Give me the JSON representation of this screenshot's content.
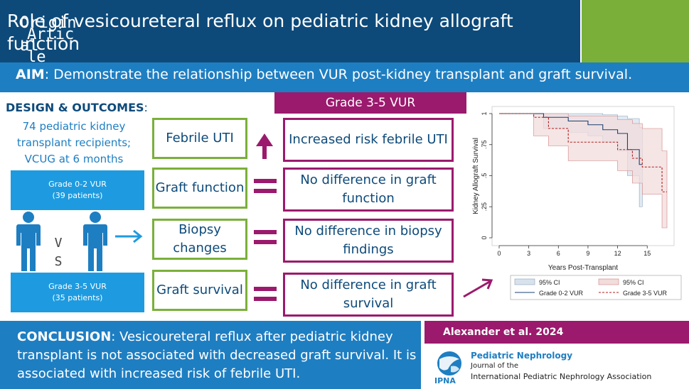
{
  "header": {
    "title": "Role of vesicoureteral reflux on pediatric kidney allograft function",
    "badge": "Original Article",
    "badge_lines": [
      "Origin",
      "Artic",
      "al",
      "le"
    ]
  },
  "aim": {
    "label": "AIM",
    "text": ": Demonstrate the relationship between VUR post-kidney transplant and graft survival."
  },
  "design": {
    "label": "DESIGN & OUTCOMES",
    "colon": ":",
    "lines": [
      "74 pediatric kidney",
      "transplant recipients;",
      "VCUG at 6 months"
    ]
  },
  "groups": [
    {
      "name": "Grade 0-2 VUR",
      "patients": "(39 patients)"
    },
    {
      "name": "Grade 3-5 VUR",
      "patients": "(35 patients)"
    }
  ],
  "vs": [
    "V",
    "S"
  ],
  "grade_header": "Grade 3-5 VUR",
  "outcomes": [
    {
      "outcome": "Febrile UTI",
      "result": "Increased risk febrile UTI",
      "symbol": "up-arrow"
    },
    {
      "outcome": "Graft function",
      "result": "No difference in graft function",
      "symbol": "equals"
    },
    {
      "outcome": "Biopsy changes",
      "result": "No difference in biopsy findings",
      "symbol": "equals"
    },
    {
      "outcome": "Graft survival",
      "result": "No difference in graft survival",
      "symbol": "equals"
    }
  ],
  "conclusion": {
    "label": "CONCLUSION",
    "text": ": Vesicoureteral reflux after pediatric kidney transplant is not associated with decreased graft survival. It is associated with increased risk of febrile UTI."
  },
  "citation": "Alexander et al. 2024",
  "journal": {
    "title": "Pediatric Nephrology",
    "sub": "Journal of the",
    "org": "International Pediatric Nephrology Association",
    "logo_text": "IPNA"
  },
  "colors": {
    "navy": "#0d4a7a",
    "blue": "#1e7ec2",
    "light_blue": "#1e9be0",
    "green": "#7ab03a",
    "magenta": "#9b1a6d"
  },
  "chart_data": {
    "type": "line",
    "xlabel": "Years Post-Transplant",
    "ylabel": "Kidney Allograft Survival",
    "xlim": [
      0,
      17
    ],
    "ylim": [
      0,
      1
    ],
    "xticks": [
      "0",
      "3",
      "6",
      "9",
      "12",
      "15"
    ],
    "yticks": [
      "0",
      ".25",
      ".5",
      ".75",
      "1"
    ],
    "series": [
      {
        "name": "Grade 0-2 VUR",
        "style": "solid",
        "points": [
          [
            0,
            1
          ],
          [
            4.5,
            1
          ],
          [
            4.5,
            0.97
          ],
          [
            7,
            0.97
          ],
          [
            7,
            0.94
          ],
          [
            9,
            0.94
          ],
          [
            9,
            0.91
          ],
          [
            10.5,
            0.91
          ],
          [
            10.5,
            0.87
          ],
          [
            12,
            0.87
          ],
          [
            12,
            0.84
          ],
          [
            13,
            0.84
          ],
          [
            13,
            0.71
          ],
          [
            14.2,
            0.71
          ],
          [
            14.2,
            0.59
          ],
          [
            14.5,
            0.59
          ]
        ],
        "ci_upper": [
          [
            0,
            1
          ],
          [
            4.5,
            1
          ],
          [
            7,
            1
          ],
          [
            9,
            1
          ],
          [
            10.5,
            0.99
          ],
          [
            12,
            0.98
          ],
          [
            13,
            0.96
          ],
          [
            14.2,
            0.89
          ],
          [
            14.5,
            0.87
          ]
        ],
        "ci_lower": [
          [
            0,
            1
          ],
          [
            4.5,
            0.88
          ],
          [
            7,
            0.85
          ],
          [
            9,
            0.82
          ],
          [
            10.5,
            0.77
          ],
          [
            12,
            0.7
          ],
          [
            13,
            0.5
          ],
          [
            14.2,
            0.25
          ],
          [
            14.5,
            0.25
          ]
        ]
      },
      {
        "name": "Grade 3-5 VUR",
        "style": "dashed",
        "points": [
          [
            0,
            1
          ],
          [
            3.5,
            1
          ],
          [
            3.5,
            0.97
          ],
          [
            5,
            0.97
          ],
          [
            5,
            0.88
          ],
          [
            7,
            0.88
          ],
          [
            7,
            0.77
          ],
          [
            12,
            0.77
          ],
          [
            12,
            0.71
          ],
          [
            13.5,
            0.71
          ],
          [
            13.5,
            0.64
          ],
          [
            14.5,
            0.64
          ],
          [
            14.5,
            0.57
          ],
          [
            16.5,
            0.57
          ],
          [
            16.5,
            0.37
          ],
          [
            17,
            0.37
          ]
        ],
        "ci_upper": [
          [
            0,
            1
          ],
          [
            3.5,
            1
          ],
          [
            5,
            1
          ],
          [
            7,
            0.98
          ],
          [
            12,
            0.95
          ],
          [
            13.5,
            0.92
          ],
          [
            14.5,
            0.88
          ],
          [
            16.5,
            0.7
          ],
          [
            17,
            0.7
          ]
        ],
        "ci_lower": [
          [
            0,
            1
          ],
          [
            3.5,
            0.82
          ],
          [
            5,
            0.74
          ],
          [
            7,
            0.62
          ],
          [
            12,
            0.54
          ],
          [
            13.5,
            0.44
          ],
          [
            14.5,
            0.35
          ],
          [
            16.5,
            0.08
          ],
          [
            17,
            0.08
          ]
        ]
      }
    ],
    "legend": [
      {
        "label": "95% CI",
        "kind": "ci",
        "series": 0
      },
      {
        "label": "95% CI",
        "kind": "ci",
        "series": 1
      },
      {
        "label": "Grade 0-2 VUR",
        "kind": "line",
        "series": 0
      },
      {
        "label": "Grade 3-5 VUR",
        "kind": "line",
        "series": 1
      }
    ],
    "legend_position": "bottom",
    "ci_colors": [
      "#d8e2ec",
      "#f2dcdc"
    ],
    "line_colors": [
      "#1a3f70",
      "#b01c1c"
    ]
  }
}
